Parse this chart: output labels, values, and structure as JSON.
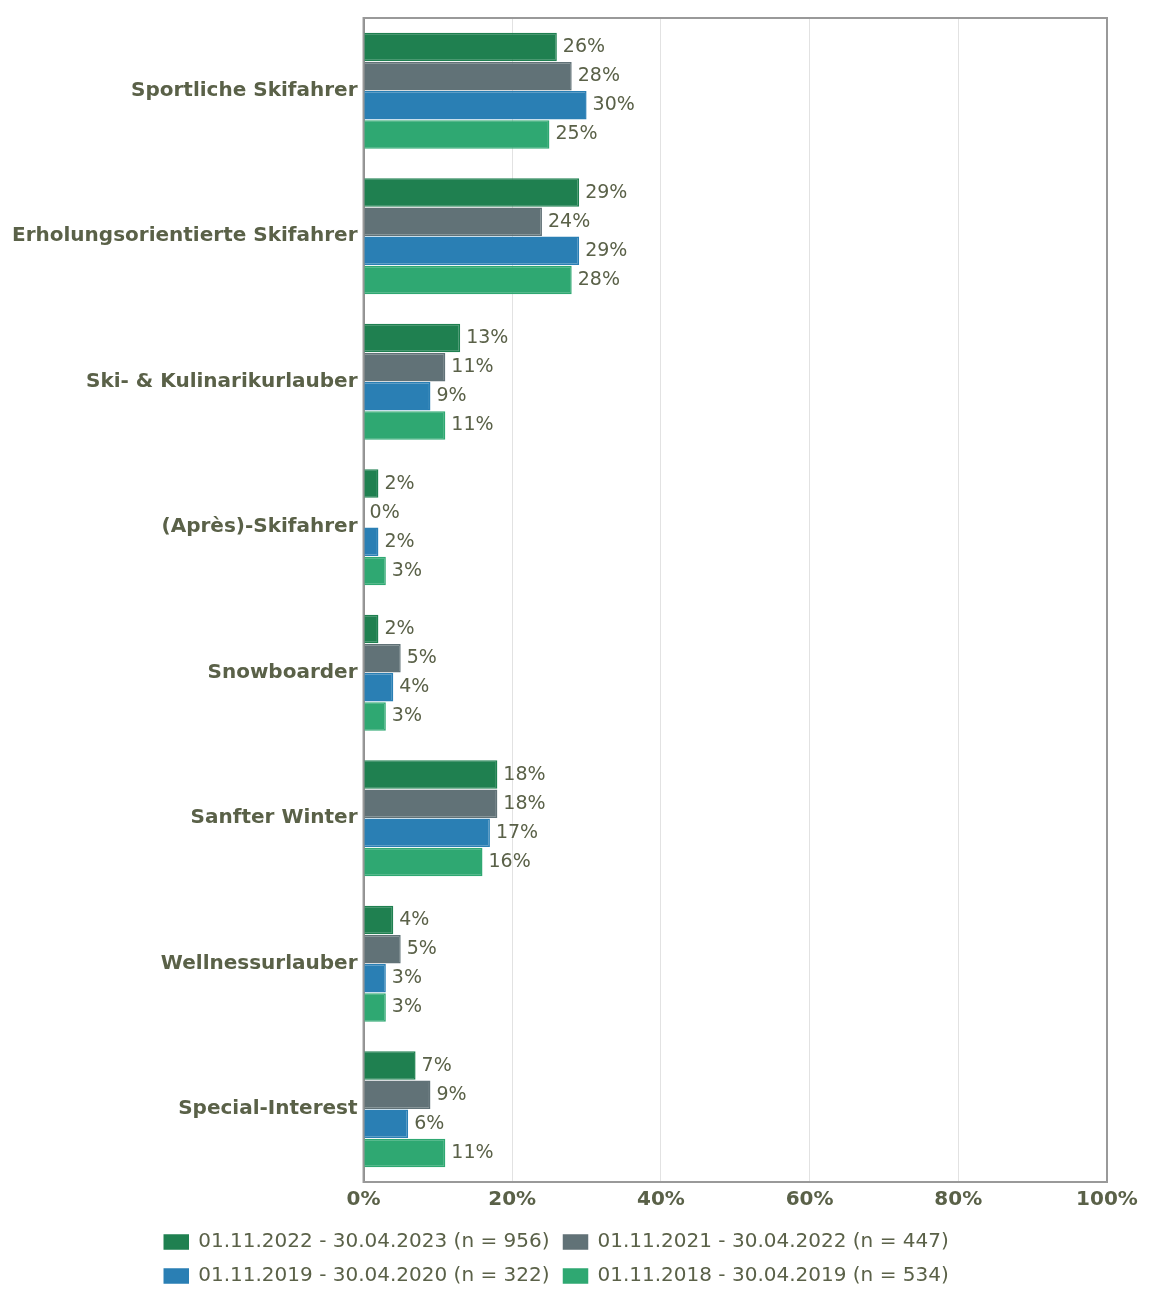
{
  "chart_data": {
    "type": "bar",
    "orientation": "horizontal",
    "categories": [
      "Sportliche Skifahrer",
      "Erholungsorientierte Skifahrer",
      "Ski- & Kulinarikurlauber",
      "(Après)-Skifahrer",
      "Snowboarder",
      "Sanfter Winter",
      "Wellnessurlauber",
      "Special-Interest"
    ],
    "series": [
      {
        "name": "01.11.2022 - 30.04.2023 (n = 956)",
        "color": "#1f8050",
        "values": [
          26,
          29,
          13,
          2,
          2,
          18,
          4,
          7
        ],
        "value_labels": [
          "26%",
          "29%",
          "13%",
          "2%",
          "2%",
          "18%",
          "4%",
          "7%"
        ]
      },
      {
        "name": "01.11.2021 - 30.04.2022 (n = 447)",
        "color": "#617277",
        "values": [
          28,
          24,
          11,
          0,
          5,
          18,
          5,
          9
        ],
        "value_labels": [
          "28%",
          "24%",
          "11%",
          "0%",
          "5%",
          "18%",
          "5%",
          "9%"
        ]
      },
      {
        "name": "01.11.2019 - 30.04.2020 (n = 322)",
        "color": "#2a7fb4",
        "values": [
          30,
          29,
          9,
          2,
          4,
          17,
          3,
          6
        ],
        "value_labels": [
          "30%",
          "29%",
          "9%",
          "2%",
          "4%",
          "17%",
          "3%",
          "6%"
        ]
      },
      {
        "name": "01.11.2018 - 30.04.2019 (n = 534)",
        "color": "#2fa872",
        "values": [
          25,
          28,
          11,
          3,
          3,
          16,
          3,
          11
        ],
        "value_labels": [
          "25%",
          "28%",
          "11%",
          "3%",
          "3%",
          "16%",
          "3%",
          "11%"
        ]
      }
    ],
    "xlim": [
      0,
      100
    ],
    "xticks": [
      {
        "value": 0,
        "label": "0%"
      },
      {
        "value": 20,
        "label": "20%"
      },
      {
        "value": 40,
        "label": "40%"
      },
      {
        "value": 60,
        "label": "60%"
      },
      {
        "value": 80,
        "label": "80%"
      },
      {
        "value": 100,
        "label": "100%"
      }
    ],
    "grid": "x",
    "legend": "bottom"
  }
}
